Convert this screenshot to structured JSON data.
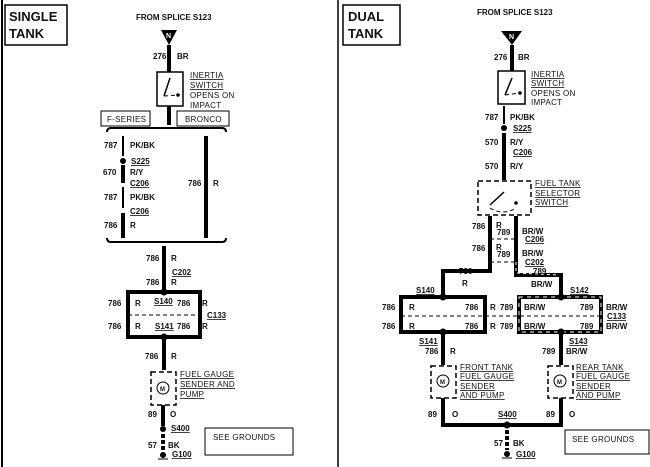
{
  "left": {
    "title_line1": "SINGLE",
    "title_line2": "TANK",
    "source": "FROM SPLICE S123",
    "connector_n": "N",
    "w276": "276",
    "w276_color": "BR",
    "inertia": [
      "INERTIA",
      "SWITCH",
      "OPENS ON",
      "IMPACT"
    ],
    "fseries": "F-SERIES",
    "bronco": "BRONCO",
    "fseries_wires": [
      {
        "num": "787",
        "color": "PK/BK"
      },
      {
        "splice": "S225"
      },
      {
        "num": "670",
        "color": "R/Y"
      },
      {
        "connector": "C206"
      },
      {
        "num": "787",
        "color": "PK/BK"
      },
      {
        "connector": "C206"
      },
      {
        "num": "786",
        "color": "R"
      }
    ],
    "bronco_wire": {
      "num": "786",
      "color": "R"
    },
    "w786": "786",
    "r": "R",
    "c202": "C202",
    "s140": "S140",
    "s141": "S141",
    "c133": "C133",
    "sender": [
      "FUEL GAUGE",
      "SENDER AND",
      "PUMP"
    ],
    "motor": "M",
    "w89": "89",
    "w89_color": "O",
    "s400": "S400",
    "w57": "57",
    "w57_color": "BK",
    "g100": "G100",
    "see_grounds": "SEE GROUNDS"
  },
  "right": {
    "title_line1": "DUAL",
    "title_line2": "TANK",
    "source": "FROM SPLICE S123",
    "connector_n": "N",
    "w276": "276",
    "w276_color": "BR",
    "inertia": [
      "INERTIA",
      "SWITCH",
      "OPENS ON",
      "IMPACT"
    ],
    "w787": "787",
    "w787_color": "PK/BK",
    "s225": "S225",
    "w570": "570",
    "w570_color": "R/Y",
    "c206": "C206",
    "selector": [
      "FUEL TANK",
      "SELECTOR",
      "SWITCH"
    ],
    "w786": "786",
    "r": "R",
    "w789": "789",
    "brw": "BR/W",
    "c202": "C202",
    "s140": "S140",
    "s141": "S141",
    "s142": "S142",
    "s143": "S143",
    "c133": "C133",
    "front_sender": [
      "FRONT TANK",
      "FUEL GAUGE",
      "SENDER",
      "AND PUMP"
    ],
    "rear_sender": [
      "REAR TANK",
      "FUEL GAUGE",
      "SENDER",
      "AND PUMP"
    ],
    "motor": "M",
    "w89": "89",
    "w89_color": "O",
    "s400": "S400",
    "w57": "57",
    "w57_color": "BK",
    "g100": "G100",
    "see_grounds": "SEE GROUNDS"
  }
}
